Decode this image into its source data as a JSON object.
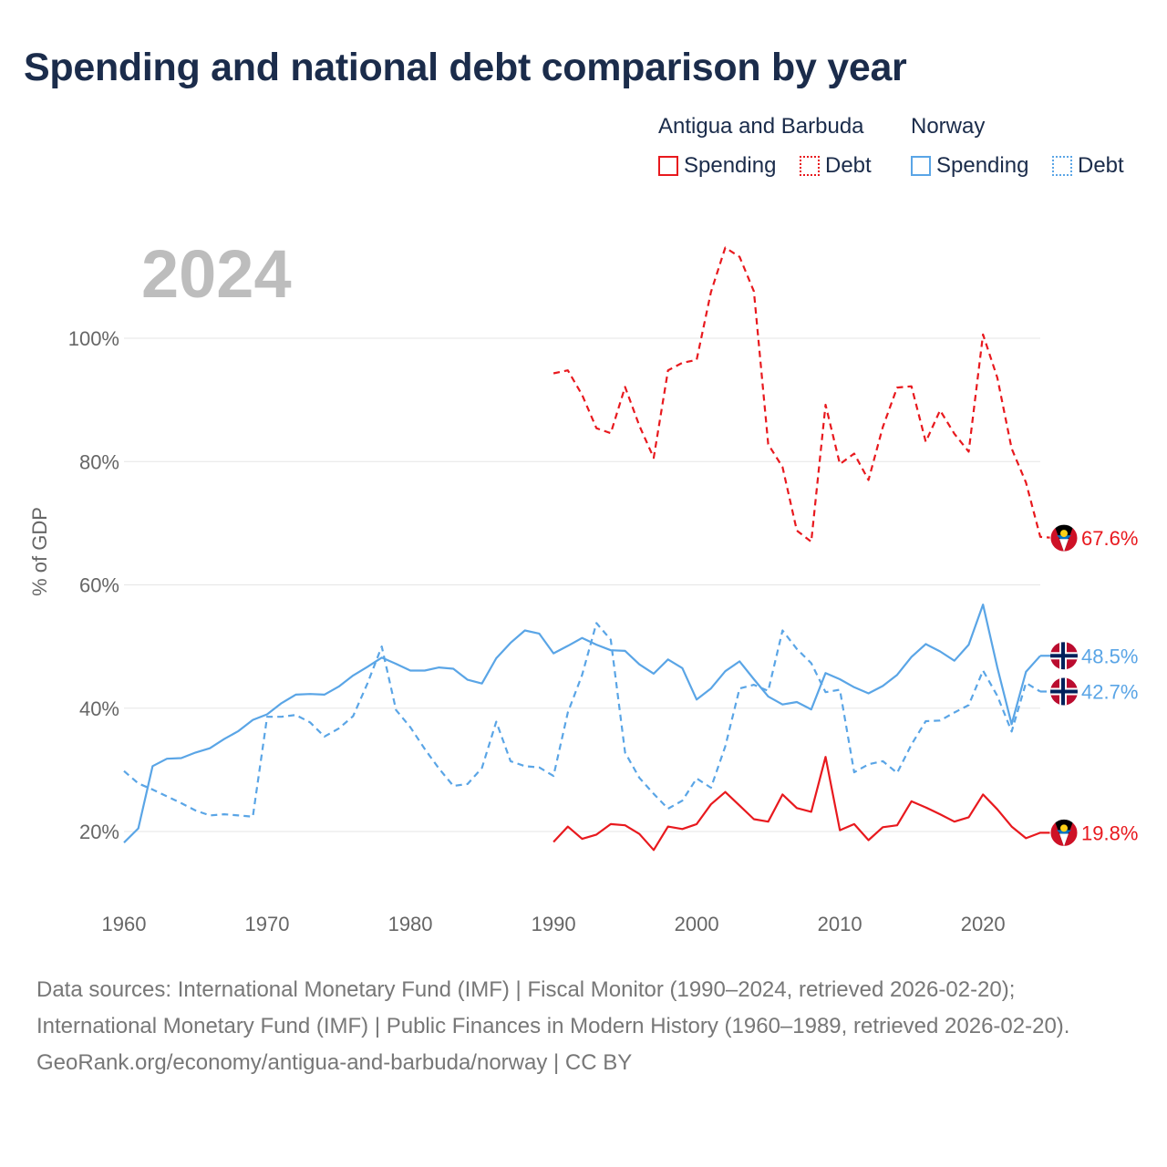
{
  "title": "Spending and national debt comparison by year",
  "current_year": "2024",
  "legend": {
    "groups": [
      {
        "country": "Antigua and Barbuda",
        "color": "#e8191e",
        "items": [
          {
            "label": "Spending",
            "style": "solid"
          },
          {
            "label": "Debt",
            "style": "dotted"
          }
        ]
      },
      {
        "country": "Norway",
        "color": "#5aa5e6",
        "items": [
          {
            "label": "Spending",
            "style": "solid"
          },
          {
            "label": "Debt",
            "style": "dotted"
          }
        ]
      }
    ]
  },
  "footer": {
    "sources": "Data sources: International Monetary Fund (IMF) | Fiscal Monitor (1990–2024, retrieved 2026-02-20); International Monetary Fund (IMF) | Public Finances in Modern History (1960–1989, retrieved 2026-02-20).",
    "credit": "GeoRank.org/economy/antigua-and-barbuda/norway | CC BY"
  },
  "chart_data": {
    "type": "line",
    "title": "Spending and national debt comparison by year",
    "xlabel": "",
    "ylabel": "% of GDP",
    "xlim": [
      1960,
      2024
    ],
    "ylim": [
      10,
      115
    ],
    "x_ticks": [
      1960,
      1970,
      1980,
      1990,
      2000,
      2010,
      2020
    ],
    "y_ticks": [
      20,
      40,
      60,
      80,
      100
    ],
    "y_tick_labels": [
      "20%",
      "40%",
      "60%",
      "80%",
      "100%"
    ],
    "grid": true,
    "series": [
      {
        "name": "Antigua and Barbuda Debt",
        "country": "Antigua and Barbuda",
        "metric": "Debt",
        "color": "#e8191e",
        "dash": "dashed",
        "end_label": "67.6%",
        "start_year": 1990,
        "values": [
          94.3,
          94.8,
          90.8,
          85.4,
          84.6,
          92.1,
          85.8,
          80.6,
          94.8,
          96.0,
          96.5,
          107.5,
          114.7,
          113.2,
          107.6,
          82.8,
          79.1,
          68.8,
          67.0,
          89.2,
          79.6,
          81.3,
          77.0,
          85.6,
          92.0,
          92.2,
          83.2,
          88.3,
          84.5,
          81.6,
          100.6,
          93.6,
          82.1,
          76.6,
          67.8,
          67.6
        ]
      },
      {
        "name": "Antigua and Barbuda Spending",
        "country": "Antigua and Barbuda",
        "metric": "Spending",
        "color": "#e8191e",
        "dash": "solid",
        "end_label": "19.8%",
        "start_year": 1990,
        "values": [
          18.3,
          20.8,
          18.8,
          19.5,
          21.2,
          21.0,
          19.6,
          17.0,
          20.8,
          20.4,
          21.2,
          24.4,
          26.4,
          24.2,
          22.0,
          21.6,
          26.0,
          23.8,
          23.2,
          32.1,
          20.2,
          21.2,
          18.6,
          20.7,
          21.0,
          24.9,
          23.9,
          22.8,
          21.6,
          22.3,
          26.0,
          23.6,
          20.8,
          18.9,
          19.8,
          19.8
        ]
      },
      {
        "name": "Norway Spending",
        "country": "Norway",
        "metric": "Spending",
        "color": "#5aa5e6",
        "dash": "solid",
        "end_label": "48.5%",
        "start_year": 1960,
        "values": [
          18.2,
          20.5,
          30.6,
          31.8,
          31.9,
          32.8,
          33.5,
          35.0,
          36.3,
          38.1,
          39.0,
          40.8,
          42.2,
          42.3,
          42.2,
          43.5,
          45.3,
          46.7,
          48.2,
          47.2,
          46.1,
          46.1,
          46.6,
          46.4,
          44.6,
          44.0,
          48.1,
          50.6,
          52.6,
          52.1,
          48.9,
          50.1,
          51.4,
          50.3,
          49.4,
          49.3,
          47.1,
          45.6,
          47.9,
          46.5,
          41.4,
          43.2,
          46.0,
          47.6,
          44.7,
          41.9,
          40.6,
          41.0,
          39.8,
          45.7,
          44.7,
          43.4,
          42.4,
          43.6,
          45.4,
          48.3,
          50.4,
          49.2,
          47.7,
          50.3,
          56.8,
          46.6,
          37.4,
          45.9,
          48.5
        ]
      },
      {
        "name": "Norway Debt",
        "country": "Norway",
        "metric": "Debt",
        "color": "#5aa5e6",
        "dash": "dashed",
        "end_label": "42.7%",
        "start_year": 1960,
        "values": [
          29.8,
          27.8,
          26.8,
          25.7,
          24.6,
          23.4,
          22.6,
          22.8,
          22.6,
          22.4,
          38.6,
          38.6,
          38.9,
          37.7,
          35.4,
          36.7,
          38.7,
          44.0,
          50.0,
          39.7,
          36.9,
          33.4,
          30.2,
          27.4,
          27.7,
          30.3,
          37.8,
          31.4,
          30.6,
          30.4,
          29.0,
          39.3,
          45.4,
          53.8,
          51.1,
          32.8,
          28.7,
          26.1,
          23.7,
          25.0,
          28.6,
          27.1,
          33.8,
          43.2,
          43.8,
          42.8,
          52.6,
          49.6,
          47.3,
          42.6,
          43.0,
          29.6,
          30.9,
          31.4,
          29.5,
          34.1,
          37.9,
          38.0,
          39.3,
          40.5,
          46.1,
          42.0,
          36.2,
          44.1,
          42.7
        ]
      }
    ]
  }
}
